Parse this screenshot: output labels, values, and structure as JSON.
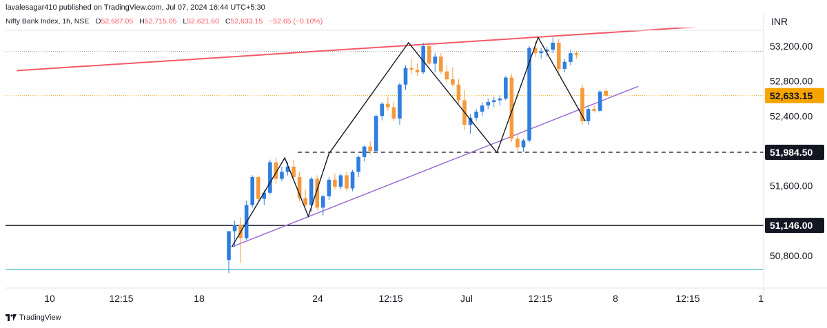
{
  "publish_line": "lavalesagar410 published on TradingView.com, Jul 07, 2024 16:44 UTC+5:30",
  "legend": {
    "symbol": "Nifty Bank Index, 1h, NSE",
    "o_label": "O",
    "o_value": "52,687.05",
    "h_label": "H",
    "h_value": "52,715.05",
    "l_label": "L",
    "l_value": "52,621.60",
    "c_label": "C",
    "c_value": "52,633.15",
    "change": "−52.65 (−0.10%)"
  },
  "currency": "INR",
  "footer": {
    "brand": "TradingView"
  },
  "colors": {
    "up": "#2f7ee0",
    "down": "#f59a3c",
    "resistance": "#f35a67",
    "support": "#9b6dd4",
    "teal_line": "#4fc3c0",
    "dashed": "#131722",
    "badge_current": "#f7a400",
    "badge_dark": "#131722"
  },
  "chart_data": {
    "type": "candlestick",
    "y_axis": {
      "ticks": [
        "53,200.00",
        "52,800.00",
        "52,400.00",
        "51,600.00",
        "51,200.00",
        "50,800.00"
      ],
      "range": [
        50560,
        53470
      ]
    },
    "x_axis": {
      "labels": [
        "10",
        "12:15",
        "18",
        "24",
        "12:15",
        "Jul",
        "12:15",
        "8",
        "12:15",
        "1"
      ]
    },
    "price_badges": [
      {
        "label": "52,633.15",
        "value": 52633.15,
        "style": "current"
      },
      {
        "label": "51,984.50",
        "value": 51984.5,
        "style": "dark"
      },
      {
        "label": "51,146.00",
        "value": 51146,
        "style": "dark"
      }
    ],
    "horizontal_lines": [
      {
        "name": "support-51146",
        "value": 51146,
        "style": "solid"
      },
      {
        "name": "dashed-51984",
        "value": 51984.5,
        "style": "dashed",
        "from_candle": 7
      },
      {
        "name": "teal",
        "value": 50640,
        "style": "solid"
      }
    ],
    "trendlines": [
      {
        "name": "resistance",
        "points": [
          [
            -36,
            52920
          ],
          [
            85,
            53445
          ]
        ]
      },
      {
        "name": "rising-support",
        "points": [
          [
            0.5,
            50900
          ],
          [
            69.5,
            52740
          ]
        ]
      }
    ],
    "zigzag": [
      [
        0.5,
        50900
      ],
      [
        9.5,
        51920
      ],
      [
        13.5,
        51250
      ],
      [
        17,
        51970
      ],
      [
        30.5,
        53240
      ],
      [
        45.5,
        51980
      ],
      [
        52.5,
        53300
      ],
      [
        60.5,
        52340
      ]
    ],
    "candles": [
      [
        50750,
        51080,
        50600,
        51080
      ],
      [
        51080,
        51200,
        50900,
        51150
      ],
      [
        51150,
        51240,
        50720,
        51000
      ],
      [
        51000,
        51430,
        50980,
        51380
      ],
      [
        51380,
        51720,
        51350,
        51700
      ],
      [
        51700,
        51720,
        51420,
        51450
      ],
      [
        51450,
        51550,
        51380,
        51520
      ],
      [
        51520,
        51900,
        51500,
        51870
      ],
      [
        51870,
        51920,
        51620,
        51680
      ],
      [
        51680,
        51820,
        51650,
        51760
      ],
      [
        51760,
        51870,
        51720,
        51820
      ],
      [
        51820,
        51900,
        51660,
        51700
      ],
      [
        51700,
        51760,
        51420,
        51460
      ],
      [
        51460,
        51560,
        51360,
        51380
      ],
      [
        51380,
        51700,
        51300,
        51680
      ],
      [
        51680,
        51720,
        51320,
        51350
      ],
      [
        51350,
        51500,
        51260,
        51480
      ],
      [
        51480,
        51700,
        51440,
        51670
      ],
      [
        51670,
        51740,
        51560,
        51590
      ],
      [
        51590,
        51740,
        51560,
        51720
      ],
      [
        51720,
        51760,
        51540,
        51570
      ],
      [
        51570,
        51780,
        51540,
        51760
      ],
      [
        51760,
        51950,
        51700,
        51930
      ],
      [
        51930,
        52060,
        51880,
        52050
      ],
      [
        52050,
        52110,
        51960,
        52000
      ],
      [
        52000,
        52420,
        51980,
        52400
      ],
      [
        52400,
        52560,
        52350,
        52540
      ],
      [
        52540,
        52620,
        52460,
        52500
      ],
      [
        52500,
        52560,
        52340,
        52370
      ],
      [
        52370,
        52780,
        52300,
        52760
      ],
      [
        52760,
        52980,
        52700,
        52950
      ],
      [
        52950,
        53060,
        52880,
        52930
      ],
      [
        52930,
        53000,
        52860,
        52900
      ],
      [
        52900,
        53240,
        52880,
        53200
      ],
      [
        53200,
        53240,
        52980,
        53000
      ],
      [
        53000,
        53120,
        52900,
        53080
      ],
      [
        53080,
        53120,
        52880,
        52910
      ],
      [
        52910,
        52980,
        52780,
        52820
      ],
      [
        52820,
        52960,
        52740,
        52760
      ],
      [
        52760,
        52820,
        52540,
        52580
      ],
      [
        52580,
        52700,
        52240,
        52300
      ],
      [
        52300,
        52420,
        52200,
        52380
      ],
      [
        52380,
        52480,
        52340,
        52450
      ],
      [
        52450,
        52560,
        52400,
        52520
      ],
      [
        52520,
        52600,
        52480,
        52560
      ],
      [
        52560,
        52620,
        52500,
        52580
      ],
      [
        52580,
        52640,
        52520,
        52600
      ],
      [
        52600,
        52860,
        52580,
        52840
      ],
      [
        52840,
        52880,
        52100,
        52140
      ],
      [
        52140,
        52200,
        52000,
        52040
      ],
      [
        52040,
        52140,
        51990,
        52120
      ],
      [
        52120,
        53200,
        52100,
        53180
      ],
      [
        53180,
        53260,
        53080,
        53120
      ],
      [
        53120,
        53180,
        53060,
        53140
      ],
      [
        53140,
        53190,
        53080,
        53160
      ],
      [
        53160,
        53300,
        53120,
        53240
      ],
      [
        53240,
        53280,
        52860,
        52940
      ],
      [
        52940,
        53050,
        52900,
        53020
      ],
      [
        53020,
        53160,
        52980,
        53120
      ],
      [
        53120,
        53140,
        53060,
        53100
      ],
      [
        52720,
        52760,
        52300,
        52340
      ],
      [
        52340,
        52500,
        52300,
        52480
      ],
      [
        52480,
        52520,
        52440,
        52460
      ],
      [
        52460,
        52700,
        52440,
        52680
      ],
      [
        52687.05,
        52715.05,
        52621.6,
        52633.15
      ]
    ]
  }
}
